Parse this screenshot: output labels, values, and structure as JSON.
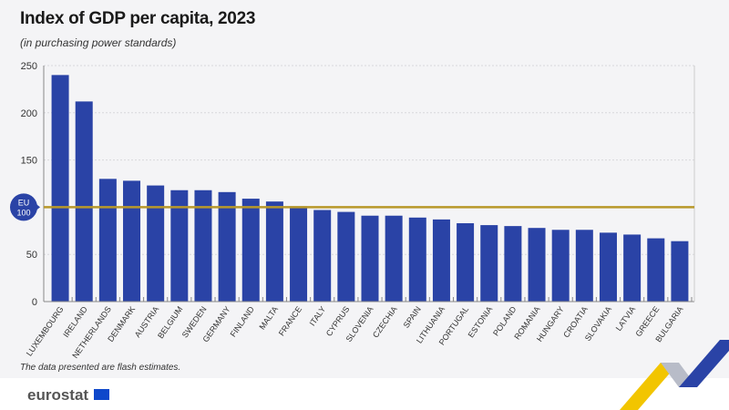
{
  "chart_data": {
    "type": "bar",
    "title": "Index of GDP per capita, 2023",
    "subtitle": "(in purchasing power standards)",
    "categories": [
      "LUXEMBOURG",
      "IRELAND",
      "NETHERLANDS",
      "DENMARK",
      "AUSTRIA",
      "BELGIUM",
      "SWEDEN",
      "GERMANY",
      "FINLAND",
      "MALTA",
      "FRANCE",
      "ITALY",
      "CYPRUS",
      "SLOVENIA",
      "CZECHIA",
      "SPAIN",
      "LITHUANIA",
      "PORTUGAL",
      "ESTONIA",
      "POLAND",
      "ROMANIA",
      "HUNGARY",
      "CROATIA",
      "SLOVAKIA",
      "LATVIA",
      "GREECE",
      "BULGARIA"
    ],
    "values": [
      240,
      212,
      130,
      128,
      123,
      118,
      118,
      116,
      109,
      106,
      101,
      97,
      95,
      91,
      91,
      89,
      87,
      83,
      81,
      80,
      78,
      76,
      76,
      73,
      71,
      67,
      64
    ],
    "ylim": [
      0,
      250
    ],
    "yticks": [
      0,
      50,
      100,
      150,
      200,
      250
    ],
    "ytick_labels": [
      "0",
      "50",
      "",
      "150",
      "200",
      "250"
    ],
    "reference_line": {
      "value": 100,
      "label_top": "EU",
      "label_bottom": "100",
      "color": "#b8982a"
    },
    "grid": true,
    "bar_color": "#2a43a6"
  },
  "note": "The data presented are flash estimates.",
  "logo": "eurostat"
}
